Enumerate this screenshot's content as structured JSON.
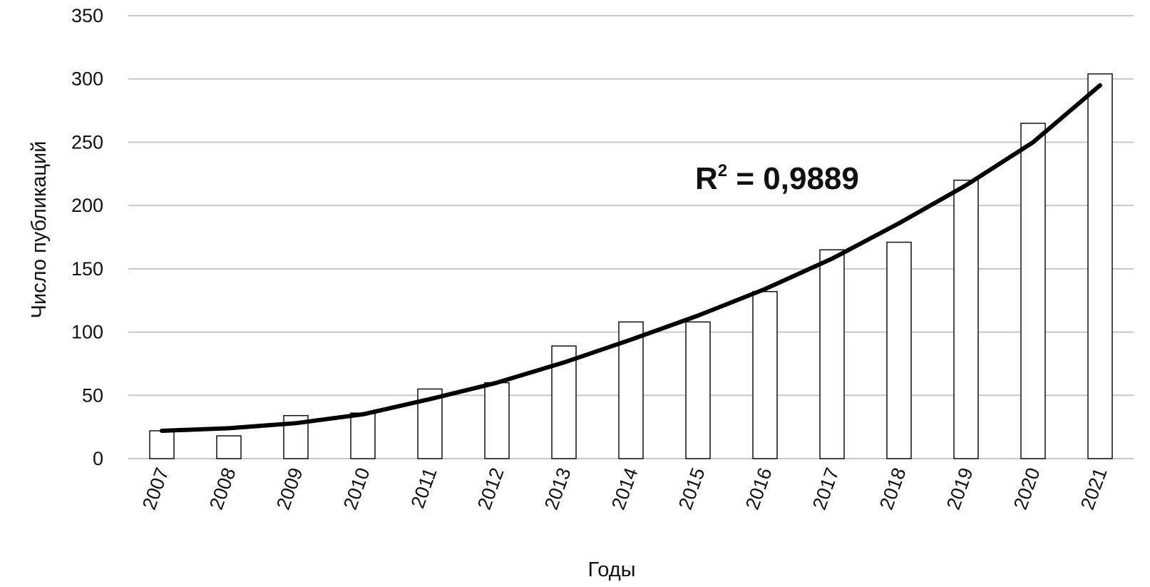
{
  "chart_data": {
    "type": "bar",
    "categories": [
      "2007",
      "2008",
      "2009",
      "2010",
      "2011",
      "2012",
      "2013",
      "2014",
      "2015",
      "2016",
      "2017",
      "2018",
      "2019",
      "2020",
      "2021"
    ],
    "values": [
      22,
      18,
      34,
      36,
      55,
      60,
      89,
      108,
      108,
      132,
      165,
      171,
      220,
      265,
      304
    ],
    "trendline": {
      "type": "line",
      "values": [
        22,
        24,
        28,
        35,
        47,
        60,
        76,
        94,
        113,
        134,
        158,
        186,
        216,
        250,
        295
      ]
    },
    "annotation": {
      "prefix": "R",
      "superscript": "2",
      "suffix": " = 0,9889"
    },
    "xlabel": "Годы",
    "ylabel": "Число публикаций",
    "ylim": [
      0,
      350
    ],
    "yticks": [
      0,
      50,
      100,
      150,
      200,
      250,
      300,
      350
    ],
    "grid": true,
    "colors": {
      "bar_fill": "#ffffff",
      "bar_stroke": "#111111",
      "trend": "#000000",
      "grid": "#c8c8c8"
    }
  }
}
